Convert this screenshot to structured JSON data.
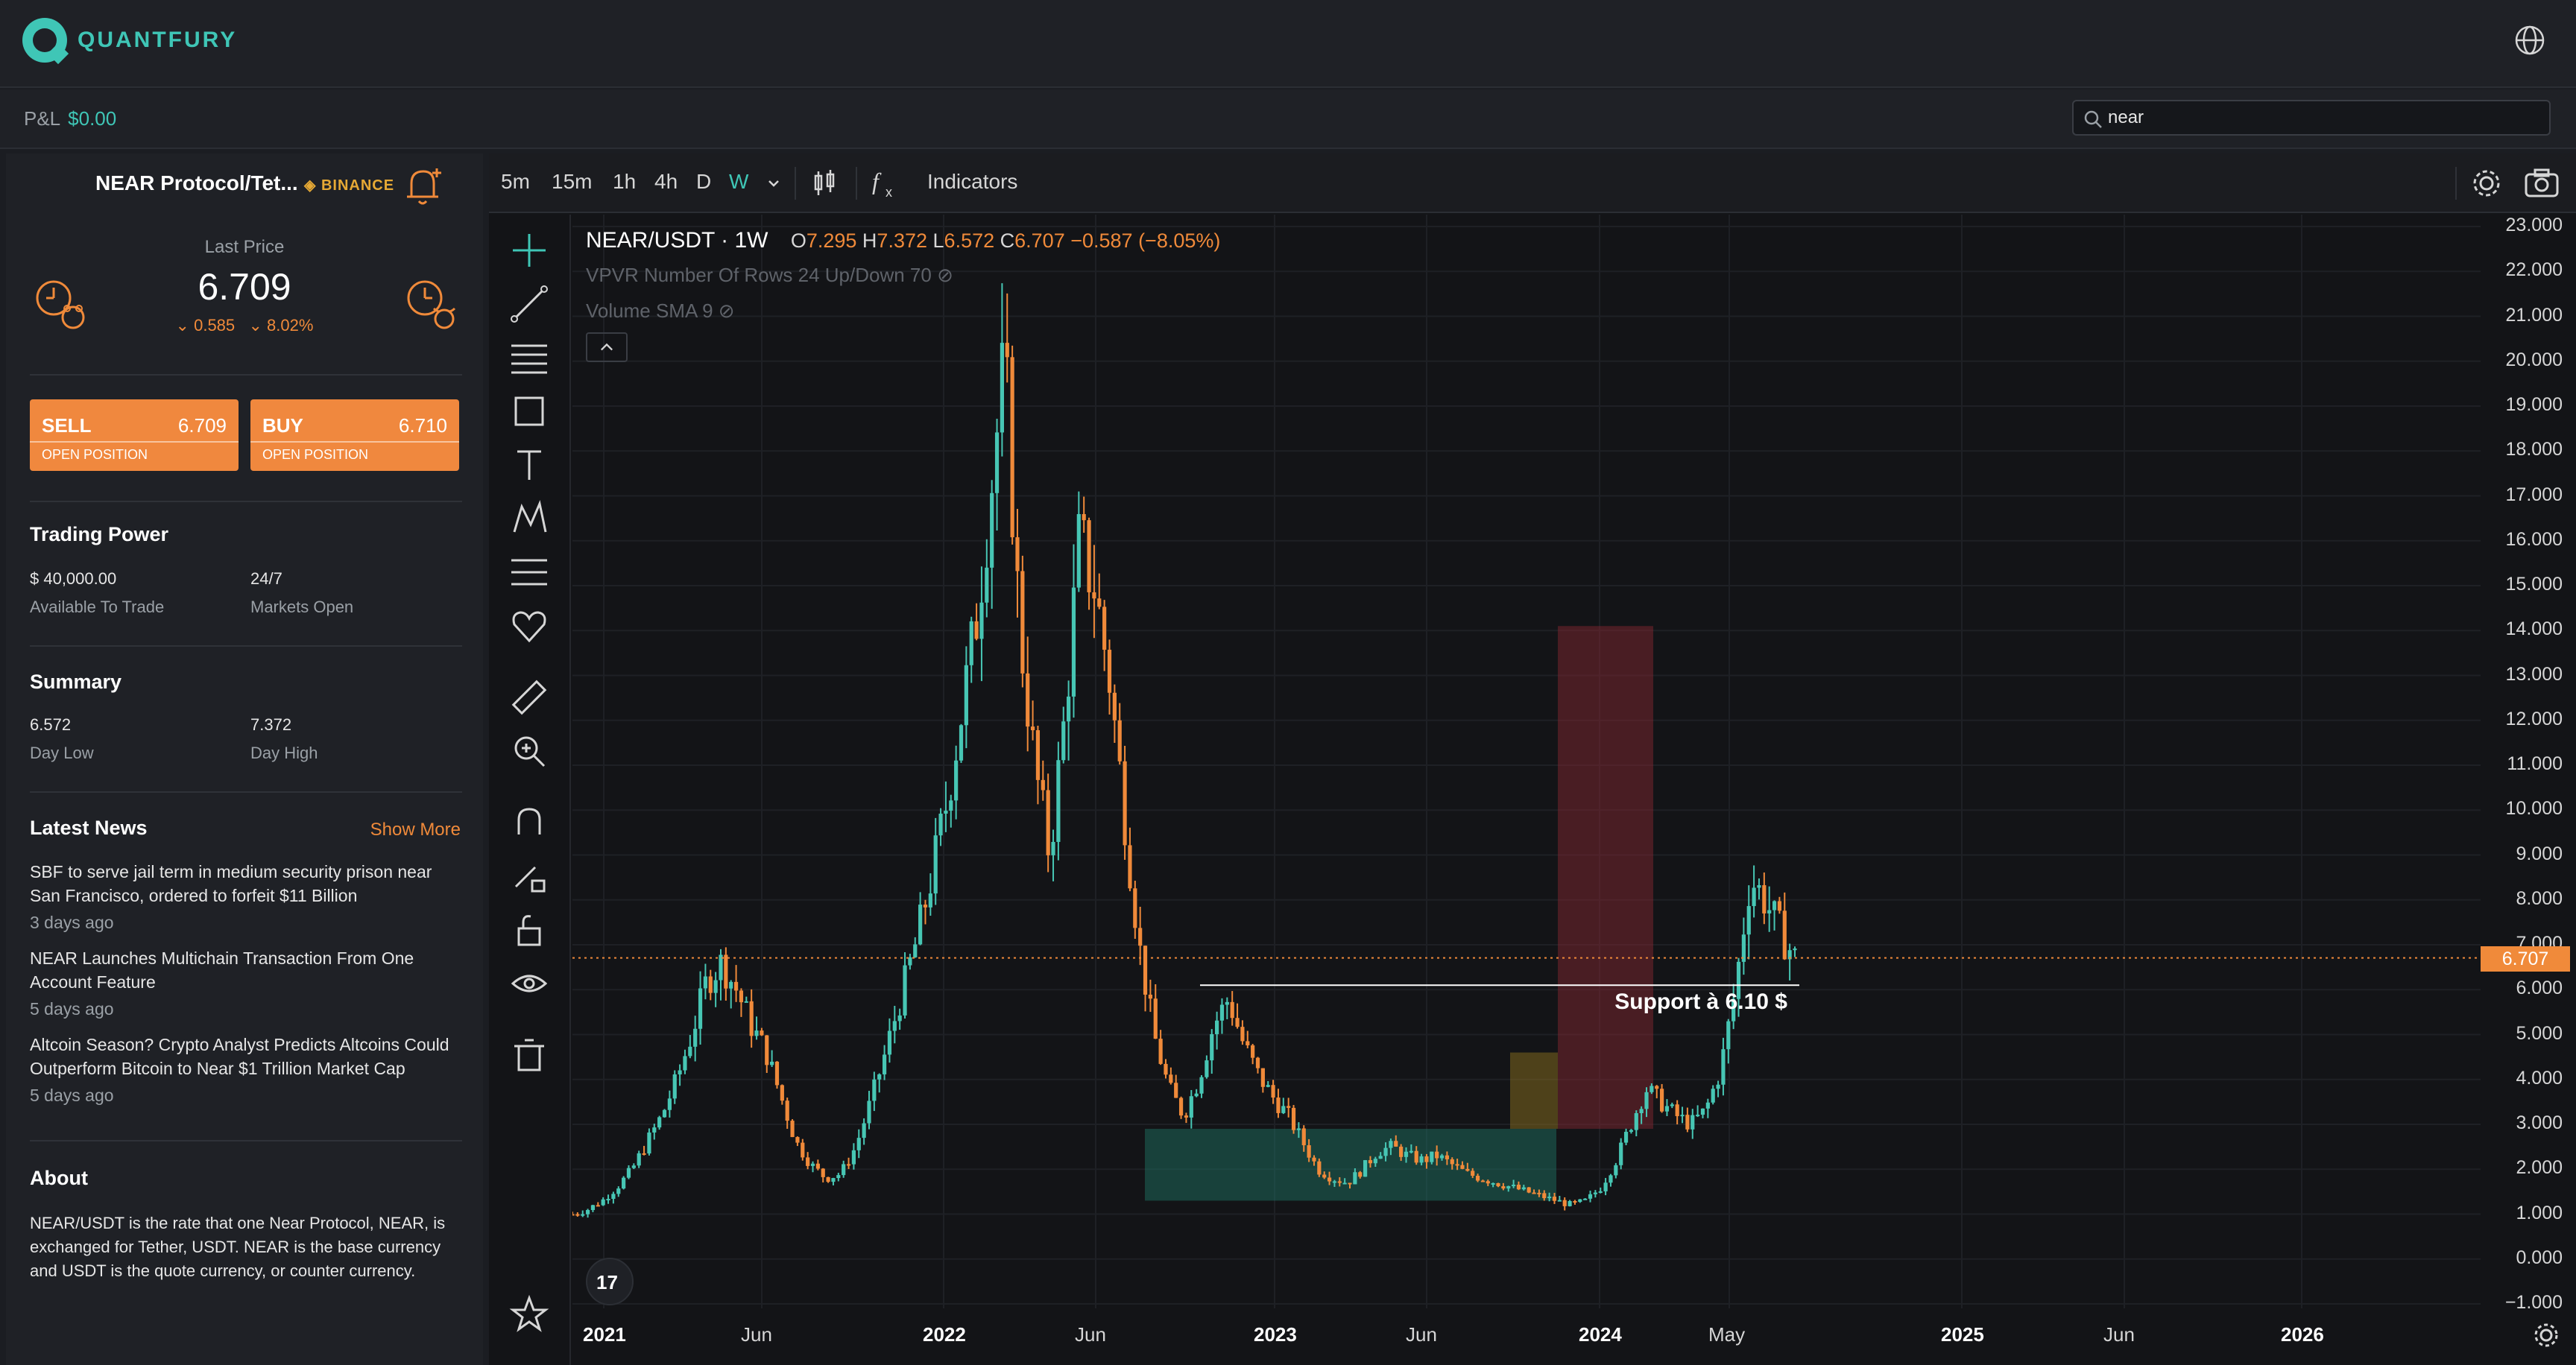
{
  "app": {
    "brand": "QUANTFURY"
  },
  "subbar": {
    "pnl_label": "P&L",
    "pnl_value": "$0.00",
    "search_value": "near"
  },
  "instrument": {
    "pair": "NEAR Protocol/Tet...",
    "exchange": "BINANCE",
    "last_price_label": "Last Price",
    "last_price": "6.709",
    "change_abs": "0.585",
    "change_pct": "8.02%"
  },
  "trade": {
    "sell_label": "SELL",
    "sell_price": "6.709",
    "sell_sub": "OPEN POSITION",
    "buy_label": "BUY",
    "buy_price": "6.710",
    "buy_sub": "OPEN POSITION"
  },
  "trading_power": {
    "title": "Trading Power",
    "available_value": "$ 40,000.00",
    "available_label": "Available To Trade",
    "markets_value": "24/7",
    "markets_label": "Markets Open"
  },
  "summary": {
    "title": "Summary",
    "low_value": "6.572",
    "low_label": "Day Low",
    "high_value": "7.372",
    "high_label": "Day High"
  },
  "news": {
    "title": "Latest News",
    "show_more": "Show More",
    "items": [
      {
        "headline": "SBF to serve jail term in medium security prison near San Francisco, ordered to forfeit $11 Billion",
        "ago": "3 days ago"
      },
      {
        "headline": "NEAR Launches Multichain Transaction From One Account Feature",
        "ago": "5 days ago"
      },
      {
        "headline": "Altcoin Season? Crypto Analyst Predicts Altcoins Could Outperform Bitcoin to Near $1 Trillion Market Cap",
        "ago": "5 days ago"
      }
    ]
  },
  "about": {
    "title": "About",
    "text": "NEAR/USDT is the rate that one Near Protocol, NEAR, is exchanged for Tether, USDT. NEAR is the base currency and USDT is the quote currency, or counter currency."
  },
  "chart_toolbar": {
    "timeframes": [
      "5m",
      "15m",
      "1h",
      "4h",
      "D",
      "W"
    ],
    "active_timeframe": "W",
    "indicators_label": "Indicators"
  },
  "chart_legend": {
    "symbol": "NEAR/USDT · 1W",
    "o_label": "O",
    "o_value": "7.295",
    "h_label": "H",
    "h_value": "7.372",
    "l_label": "L",
    "l_value": "6.572",
    "c_label": "C",
    "c_value": "6.707",
    "change": "−0.587 (−8.05%)",
    "vpvr": "VPVR Number Of Rows 24 Up/Down 70",
    "volume": "Volume SMA 9"
  },
  "chart_data": {
    "type": "candlestick",
    "symbol": "NEAR/USDT",
    "interval": "1W",
    "ylim": [
      -1.0,
      23.0
    ],
    "y_ticks": [
      "23.000",
      "22.000",
      "21.000",
      "20.000",
      "19.000",
      "18.000",
      "17.000",
      "16.000",
      "15.000",
      "14.000",
      "13.000",
      "12.000",
      "11.000",
      "10.000",
      "9.000",
      "8.000",
      "7.000",
      "6.000",
      "5.000",
      "4.000",
      "3.000",
      "2.000",
      "1.000",
      "0.000",
      "−1.000"
    ],
    "x_ticks": [
      "2021",
      "Jun",
      "2022",
      "Jun",
      "2023",
      "Jun",
      "2024",
      "May",
      "2025",
      "Jun",
      "2026"
    ],
    "last_price": 6.707,
    "last_price_label": "6.707",
    "price_path": [
      1.0,
      1.1,
      1.3,
      1.6,
      2.0,
      2.6,
      3.2,
      4.0,
      5.0,
      6.2,
      6.6,
      6.0,
      5.2,
      4.6,
      3.6,
      2.6,
      2.1,
      1.8,
      1.9,
      2.5,
      3.5,
      4.6,
      5.8,
      7.0,
      8.4,
      10.0,
      12.0,
      14.0,
      17.0,
      20.0,
      14.0,
      11.0,
      9.0,
      12.0,
      16.0,
      15.0,
      13.0,
      10.0,
      7.0,
      5.0,
      3.8,
      3.2,
      4.0,
      5.2,
      5.8,
      4.8,
      4.1,
      3.6,
      3.2,
      2.6,
      2.0,
      1.8,
      1.7,
      2.0,
      2.4,
      2.5,
      2.3,
      2.2,
      2.3,
      2.1,
      1.9,
      1.8,
      1.7,
      1.6,
      1.5,
      1.4,
      1.3,
      1.2,
      1.3,
      1.6,
      2.2,
      3.0,
      3.8,
      3.5,
      3.2,
      3.0,
      3.3,
      4.2,
      6.0,
      8.5,
      8.0,
      7.3,
      6.7
    ],
    "annotations": {
      "support_label": "Support à 6.10 $",
      "support_level": 6.1,
      "accumulation_zone": [
        1.3,
        2.9
      ],
      "resistance_zone": [
        2.9,
        14.1
      ]
    }
  }
}
